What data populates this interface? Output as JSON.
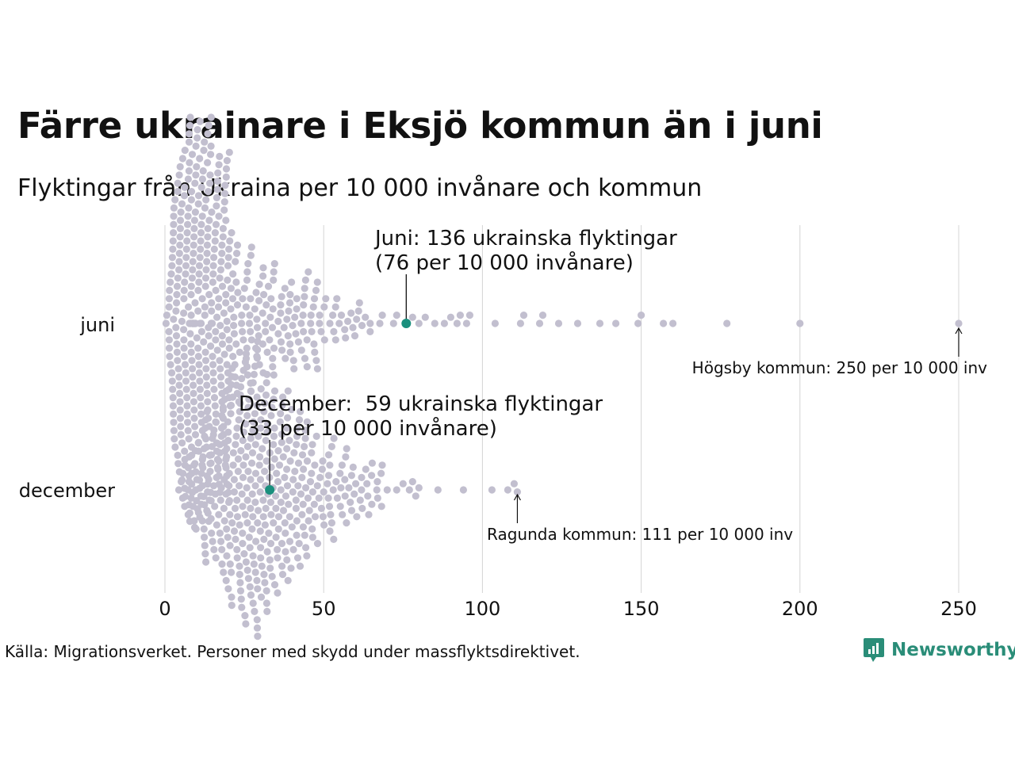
{
  "title": "Färre ukrainare i Eksjö kommun än i juni",
  "subtitle": "Flyktingar från Ukraina per 10 000 invånare och kommun",
  "source": "Källa: Migrationsverket. Personer med skydd under massflyktsdirektivet.",
  "brand": "Newsworthy",
  "colors": {
    "dot": "#c2bfcf",
    "highlight": "#1a8f7d",
    "grid": "#d4d4d4",
    "brand": "#2a8d78"
  },
  "chart_data": {
    "type": "scatter",
    "subtype": "beeswarm",
    "x_range": [
      0,
      250
    ],
    "x_ticks": [
      0,
      50,
      100,
      150,
      200,
      250
    ],
    "series": [
      {
        "name": "juni",
        "highlight_value": 76,
        "outliers": [
          72,
          73,
          76,
          78,
          80,
          82,
          85,
          88,
          90,
          92,
          93,
          95,
          96,
          104,
          112,
          113,
          118,
          119,
          124,
          130,
          137,
          142,
          149,
          150,
          157,
          160,
          177,
          200,
          250
        ],
        "annotation_lines": [
          "Juni: 136 ukrainska flyktingar",
          "(76 per 10 000 invånare)"
        ],
        "extreme_label": "Högsby kommun: 250 per 10 000 inv",
        "extreme_value": 250
      },
      {
        "name": "december",
        "highlight_value": 33,
        "outliers": [
          70,
          73,
          75,
          77,
          78,
          79,
          80,
          86,
          94,
          103,
          108,
          110,
          111
        ],
        "annotation_lines": [
          "December:  59 ukrainska flyktingar",
          "(33 per 10 000 invånare)"
        ],
        "extreme_label": "Ragunda kommun: 111 per 10 000 inv",
        "extreme_value": 111
      }
    ]
  }
}
